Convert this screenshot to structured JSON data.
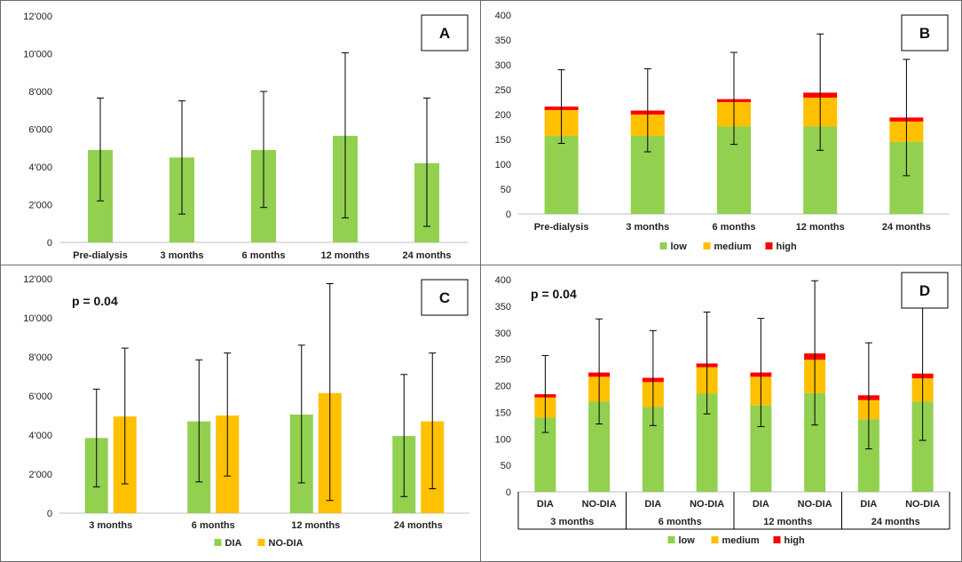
{
  "colors": {
    "green": "#92d050",
    "orange": "#ffc000",
    "red": "#ff0000",
    "errbar": "#000000",
    "axis": "#bfbfbf"
  },
  "chart_data": [
    {
      "id": "A",
      "type": "bar",
      "letter": "A",
      "categories": [
        "Pre-dialysis",
        "3 months",
        "6 months",
        "12 months",
        "24 months"
      ],
      "yticks": [
        "0",
        "2'000",
        "4'000",
        "6'000",
        "8'000",
        "10'000",
        "12'000"
      ],
      "ylim": [
        0,
        12000
      ],
      "series": [
        {
          "name": "",
          "color": "green",
          "values": [
            4900,
            4500,
            4900,
            5650,
            4200
          ]
        }
      ],
      "errors": [
        {
          "series": 0,
          "low": [
            2200,
            1500,
            1850,
            1300,
            850
          ],
          "high": [
            7650,
            7500,
            8000,
            10050,
            7650
          ]
        }
      ]
    },
    {
      "id": "B",
      "type": "stacked-bar",
      "letter": "B",
      "categories": [
        "Pre-dialysis",
        "3 months",
        "6 months",
        "12 months",
        "24 months"
      ],
      "yticks": [
        "0",
        "50",
        "100",
        "150",
        "200",
        "250",
        "300",
        "350",
        "400"
      ],
      "ylim": [
        0,
        400
      ],
      "stack": [
        {
          "name": "low",
          "color": "green",
          "values": [
            157,
            157,
            176,
            176,
            145
          ]
        },
        {
          "name": "medium",
          "color": "orange",
          "values": [
            52,
            43,
            49,
            58,
            41
          ]
        },
        {
          "name": "high",
          "color": "red",
          "values": [
            7,
            8,
            6,
            10,
            8
          ]
        }
      ],
      "errors": [
        {
          "low": [
            142,
            125,
            140,
            128,
            77
          ],
          "high": [
            290,
            292,
            325,
            362,
            311
          ]
        }
      ],
      "legend": [
        "low",
        "medium",
        "high"
      ]
    },
    {
      "id": "C",
      "type": "grouped-bar",
      "letter": "C",
      "pvalue": "p = 0.04",
      "categories": [
        "3 months",
        "6 months",
        "12 months",
        "24 months"
      ],
      "yticks": [
        "0",
        "2'000",
        "4'000",
        "6'000",
        "8'000",
        "10'000",
        "12'000"
      ],
      "ylim": [
        0,
        12000
      ],
      "series": [
        {
          "name": "DIA",
          "color": "green",
          "values": [
            3850,
            4700,
            5050,
            3950
          ],
          "low": [
            1350,
            1600,
            1550,
            850
          ],
          "high": [
            6350,
            7850,
            8600,
            7100
          ]
        },
        {
          "name": "NO-DIA",
          "color": "orange",
          "values": [
            4950,
            5000,
            6150,
            4700
          ],
          "low": [
            1500,
            1900,
            650,
            1250
          ],
          "high": [
            8450,
            8200,
            11750,
            8200
          ]
        }
      ],
      "legend": [
        "DIA",
        "NO-DIA"
      ]
    },
    {
      "id": "D",
      "type": "stacked-bar",
      "letter": "D",
      "pvalue": "p = 0.04",
      "groups": [
        "3 months",
        "6 months",
        "12 months",
        "24 months"
      ],
      "subcategories": [
        "DIA",
        "NO-DIA"
      ],
      "yticks": [
        "0",
        "50",
        "100",
        "150",
        "200",
        "250",
        "300",
        "350",
        "400"
      ],
      "ylim": [
        0,
        400
      ],
      "stack": [
        {
          "name": "low",
          "color": "green",
          "values": [
            140,
            170,
            160,
            185,
            163,
            186,
            137,
            170
          ]
        },
        {
          "name": "medium",
          "color": "orange",
          "values": [
            38,
            47,
            47,
            50,
            54,
            63,
            36,
            44
          ]
        },
        {
          "name": "high",
          "color": "red",
          "values": [
            6,
            8,
            8,
            7,
            8,
            12,
            9,
            9
          ]
        }
      ],
      "errors": [
        {
          "low": [
            112,
            128,
            125,
            147,
            123,
            126,
            81,
            97
          ],
          "high": [
            257,
            326,
            304,
            339,
            327,
            398,
            281,
            348
          ]
        }
      ],
      "legend": [
        "low",
        "medium",
        "high"
      ]
    }
  ]
}
